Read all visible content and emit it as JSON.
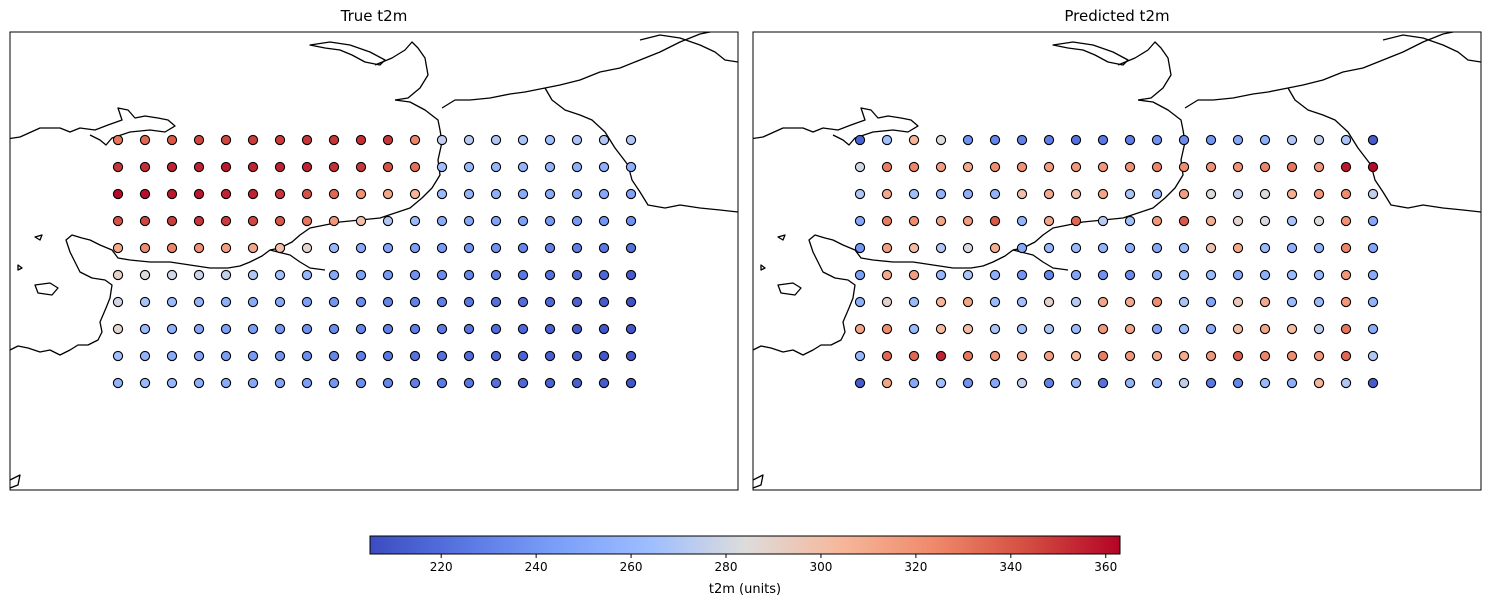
{
  "chart_data": [
    {
      "type": "scatter",
      "title": "True t2m",
      "grid_cols": 20,
      "grid_rows": 10,
      "values": [
        [
          330,
          335,
          340,
          345,
          345,
          348,
          348,
          350,
          350,
          352,
          350,
          325,
          275,
          272,
          270,
          268,
          265,
          268,
          270,
          270
        ],
        [
          350,
          352,
          355,
          355,
          358,
          355,
          355,
          355,
          352,
          350,
          342,
          332,
          265,
          262,
          260,
          258,
          258,
          255,
          255,
          255
        ],
        [
          362,
          360,
          358,
          358,
          355,
          355,
          350,
          342,
          335,
          320,
          312,
          305,
          262,
          258,
          255,
          252,
          252,
          250,
          250,
          248
        ],
        [
          342,
          345,
          348,
          350,
          348,
          345,
          340,
          330,
          318,
          300,
          270,
          262,
          252,
          250,
          248,
          245,
          242,
          242,
          240,
          238
        ],
        [
          310,
          322,
          325,
          320,
          315,
          312,
          300,
          288,
          260,
          252,
          248,
          245,
          242,
          240,
          238,
          232,
          230,
          228,
          225,
          222
        ],
        [
          290,
          285,
          280,
          278,
          276,
          270,
          265,
          260,
          250,
          245,
          242,
          238,
          235,
          232,
          228,
          225,
          222,
          220,
          218,
          212
        ],
        [
          280,
          268,
          262,
          258,
          255,
          252,
          250,
          245,
          240,
          235,
          232,
          230,
          228,
          225,
          222,
          220,
          218,
          215,
          212,
          208
        ],
        [
          288,
          262,
          255,
          250,
          246,
          244,
          242,
          238,
          235,
          232,
          230,
          228,
          226,
          224,
          220,
          218,
          215,
          212,
          210,
          210
        ],
        [
          265,
          258,
          252,
          248,
          244,
          242,
          240,
          236,
          232,
          228,
          225,
          222,
          222,
          220,
          218,
          216,
          214,
          212,
          210,
          210
        ],
        [
          258,
          262,
          260,
          255,
          252,
          250,
          248,
          245,
          240,
          236,
          232,
          228,
          226,
          224,
          222,
          218,
          215,
          214,
          212,
          210
        ]
      ]
    },
    {
      "type": "scatter",
      "title": "Predicted t2m",
      "grid_cols": 20,
      "grid_rows": 10,
      "values": [
        [
          215,
          265,
          305,
          285,
          238,
          232,
          230,
          228,
          222,
          225,
          228,
          238,
          235,
          240,
          250,
          255,
          270,
          275,
          268,
          212
        ],
        [
          280,
          328,
          325,
          315,
          310,
          322,
          320,
          315,
          318,
          318,
          320,
          325,
          322,
          320,
          320,
          325,
          330,
          318,
          358,
          362
        ],
        [
          270,
          310,
          265,
          258,
          255,
          258,
          300,
          310,
          300,
          312,
          268,
          260,
          315,
          285,
          275,
          285,
          308,
          318,
          322,
          275
        ],
        [
          250,
          328,
          322,
          312,
          315,
          340,
          258,
          312,
          335,
          272,
          265,
          318,
          340,
          308,
          288,
          282,
          268,
          285,
          320,
          250
        ],
        [
          240,
          315,
          302,
          270,
          282,
          308,
          250,
          260,
          262,
          258,
          255,
          250,
          260,
          298,
          310,
          262,
          255,
          258,
          325,
          248
        ],
        [
          245,
          310,
          315,
          260,
          268,
          255,
          240,
          232,
          248,
          238,
          235,
          252,
          262,
          262,
          250,
          255,
          262,
          260,
          318,
          252
        ],
        [
          255,
          290,
          262,
          305,
          312,
          262,
          265,
          290,
          272,
          312,
          310,
          322,
          268,
          248,
          295,
          310,
          262,
          262,
          318,
          258
        ],
        [
          312,
          322,
          262,
          302,
          300,
          268,
          265,
          268,
          262,
          318,
          312,
          248,
          262,
          252,
          300,
          312,
          302,
          275,
          330,
          252
        ],
        [
          260,
          335,
          335,
          355,
          330,
          320,
          312,
          315,
          305,
          328,
          318,
          312,
          310,
          318,
          338,
          325,
          322,
          318,
          335,
          270
        ],
        [
          212,
          312,
          250,
          265,
          238,
          250,
          275,
          230,
          258,
          222,
          258,
          255,
          275,
          225,
          232,
          262,
          255,
          305,
          270,
          212
        ]
      ]
    }
  ],
  "colorbar": {
    "vmin": 205,
    "vmax": 363,
    "colormap": "coolwarm",
    "ticks": [
      "220",
      "240",
      "260",
      "280",
      "300",
      "320",
      "340",
      "360"
    ],
    "label": "t2m (units)"
  },
  "titles": {
    "left": "True t2m",
    "right": "Predicted t2m"
  }
}
